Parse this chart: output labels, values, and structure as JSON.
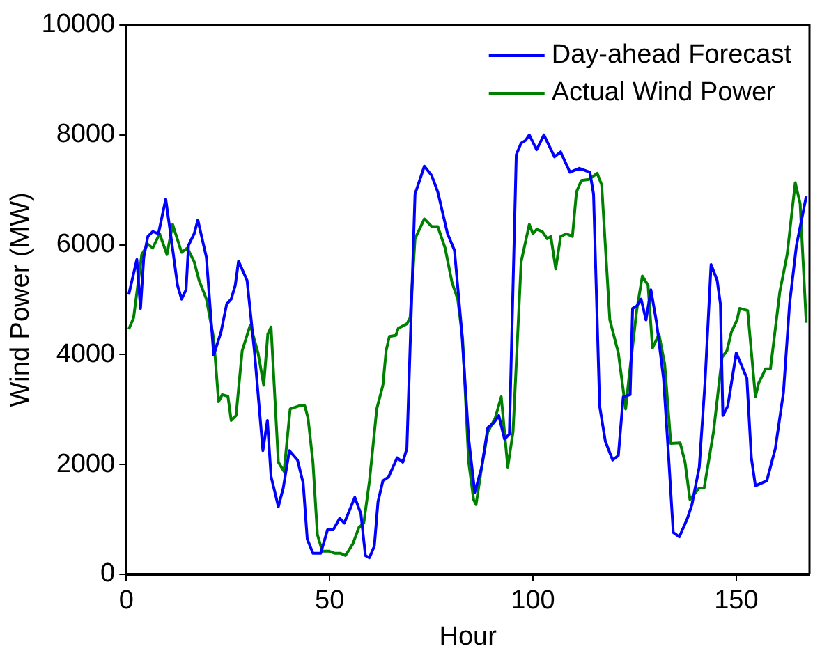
{
  "chart_data": {
    "type": "line",
    "xlabel": "Hour",
    "ylabel": "Wind Power (MW)",
    "xlim": [
      0,
      168
    ],
    "xticks": [
      0,
      50,
      100,
      150
    ],
    "ylim": [
      0,
      10000
    ],
    "yticks": [
      0,
      2000,
      4000,
      6000,
      8000,
      10000
    ],
    "grid": false,
    "legend": "top right",
    "marker": "none",
    "line_style": "solid",
    "series": [
      {
        "name": "Day-ahead Forecast",
        "color": "#0000ff",
        "x": [
          0.6,
          2.6,
          3.5,
          4.3,
          5.3,
          6.5,
          7.9,
          9.7,
          11.2,
          12.6,
          13.6,
          14.7,
          15.3,
          16.7,
          17.6,
          19.7,
          21.5,
          23.3,
          24.7,
          25.8,
          26.8,
          27.6,
          29.7,
          31.5,
          33.6,
          34.7,
          35.6,
          37.4,
          38.6,
          40.1,
          42.1,
          43.5,
          44.5,
          45.9,
          47.8,
          49.5,
          50.9,
          52.5,
          53.6,
          56.2,
          57.7,
          58.8,
          59.8,
          61.0,
          61.9,
          63.1,
          64.5,
          66.6,
          68.0,
          69.0,
          71.0,
          73.3,
          75.1,
          76.6,
          79.0,
          80.7,
          82.5,
          84.2,
          85.7,
          87.4,
          88.9,
          90.4,
          91.6,
          93.0,
          94.2,
          95.9,
          97.1,
          98.2,
          99.1,
          100.9,
          102.7,
          105.3,
          106.8,
          109.1,
          111.4,
          114.0,
          114.9,
          116.4,
          117.8,
          119.6,
          121.0,
          122.2,
          123.9,
          124.5,
          125.5,
          126.6,
          127.8,
          129.0,
          130.4,
          132.1,
          133.3,
          134.5,
          136.0,
          138.0,
          139.1,
          140.9,
          142.3,
          143.8,
          145.3,
          146.1,
          146.7,
          147.9,
          150.0,
          152.6,
          153.7,
          154.7,
          157.5,
          159.6,
          161.6,
          163.1,
          164.8,
          167.2
        ],
        "values": [
          5090,
          5730,
          4840,
          5770,
          6150,
          6240,
          6200,
          6830,
          6030,
          5260,
          5010,
          5180,
          5990,
          6200,
          6450,
          5770,
          3990,
          4410,
          4920,
          5010,
          5260,
          5700,
          5350,
          4070,
          2250,
          2800,
          1780,
          1230,
          1570,
          2250,
          2080,
          1660,
          640,
          380,
          380,
          810,
          810,
          1020,
          930,
          1400,
          1100,
          340,
          300,
          510,
          1320,
          1700,
          1770,
          2120,
          2040,
          2290,
          6920,
          7430,
          7260,
          6960,
          6200,
          5900,
          4410,
          2460,
          1490,
          1950,
          2670,
          2760,
          2890,
          2460,
          2550,
          7640,
          7850,
          7900,
          8000,
          7730,
          8000,
          7600,
          7690,
          7320,
          7390,
          7320,
          6920,
          3060,
          2420,
          2080,
          2160,
          3230,
          3270,
          4840,
          4880,
          5010,
          4630,
          5180,
          4580,
          3570,
          2210,
          760,
          680,
          1020,
          1270,
          1950,
          3480,
          5640,
          5350,
          4920,
          2890,
          3060,
          4030,
          3570,
          2120,
          1610,
          1700,
          2290,
          3310,
          4920,
          5990,
          6880
        ]
      },
      {
        "name": "Actual Wind Power",
        "color": "#008000",
        "x": [
          0.6,
          1.8,
          3.8,
          5.3,
          6.5,
          8.2,
          10.0,
          11.4,
          13.6,
          15.0,
          16.7,
          17.9,
          19.7,
          21.5,
          22.7,
          23.6,
          25.0,
          25.8,
          27.0,
          28.5,
          30.5,
          32.4,
          33.8,
          34.8,
          35.6,
          37.4,
          38.8,
          40.3,
          42.7,
          43.9,
          44.7,
          45.9,
          47.0,
          48.2,
          49.8,
          51.3,
          52.7,
          53.9,
          55.7,
          57.2,
          58.4,
          59.8,
          61.6,
          63.1,
          63.9,
          64.7,
          66.3,
          66.9,
          69.0,
          69.8,
          71.0,
          73.3,
          75.1,
          76.6,
          78.4,
          80.1,
          81.5,
          82.7,
          84.2,
          85.4,
          86.0,
          87.4,
          88.9,
          90.7,
          92.2,
          93.8,
          95.1,
          97.1,
          99.1,
          100.0,
          100.9,
          102.3,
          103.5,
          104.4,
          105.6,
          106.8,
          108.2,
          109.7,
          110.7,
          111.9,
          113.8,
          115.8,
          116.9,
          118.9,
          121.0,
          122.8,
          123.6,
          125.5,
          126.9,
          128.3,
          129.4,
          131.0,
          132.4,
          133.9,
          136.2,
          137.4,
          138.6,
          140.9,
          142.1,
          144.4,
          146.5,
          147.7,
          148.8,
          150.2,
          150.8,
          152.8,
          154.7,
          155.5,
          157.2,
          158.4,
          160.7,
          162.5,
          164.5,
          165.7,
          167.2
        ],
        "values": [
          4460,
          4670,
          5820,
          6010,
          5940,
          6200,
          5820,
          6370,
          5860,
          5940,
          5690,
          5350,
          5010,
          4290,
          3140,
          3270,
          3240,
          2800,
          2890,
          4070,
          4540,
          4030,
          3440,
          4370,
          4500,
          2040,
          1870,
          3010,
          3070,
          3070,
          2840,
          2040,
          720,
          420,
          420,
          380,
          380,
          340,
          550,
          850,
          930,
          1700,
          3010,
          3440,
          4070,
          4330,
          4350,
          4480,
          4560,
          4670,
          6110,
          6470,
          6330,
          6330,
          5940,
          5310,
          5010,
          4290,
          2040,
          1360,
          1270,
          1950,
          2590,
          2840,
          3230,
          1950,
          2590,
          5690,
          6370,
          6200,
          6280,
          6240,
          6110,
          6150,
          5560,
          6150,
          6200,
          6150,
          6960,
          7170,
          7190,
          7300,
          7090,
          4630,
          4030,
          3010,
          3570,
          4800,
          5430,
          5260,
          4120,
          4370,
          3820,
          2380,
          2390,
          2040,
          1360,
          1570,
          1570,
          2590,
          3950,
          4070,
          4410,
          4630,
          4840,
          4800,
          3230,
          3480,
          3740,
          3740,
          5140,
          5820,
          7130,
          6750,
          4580
        ]
      }
    ]
  }
}
